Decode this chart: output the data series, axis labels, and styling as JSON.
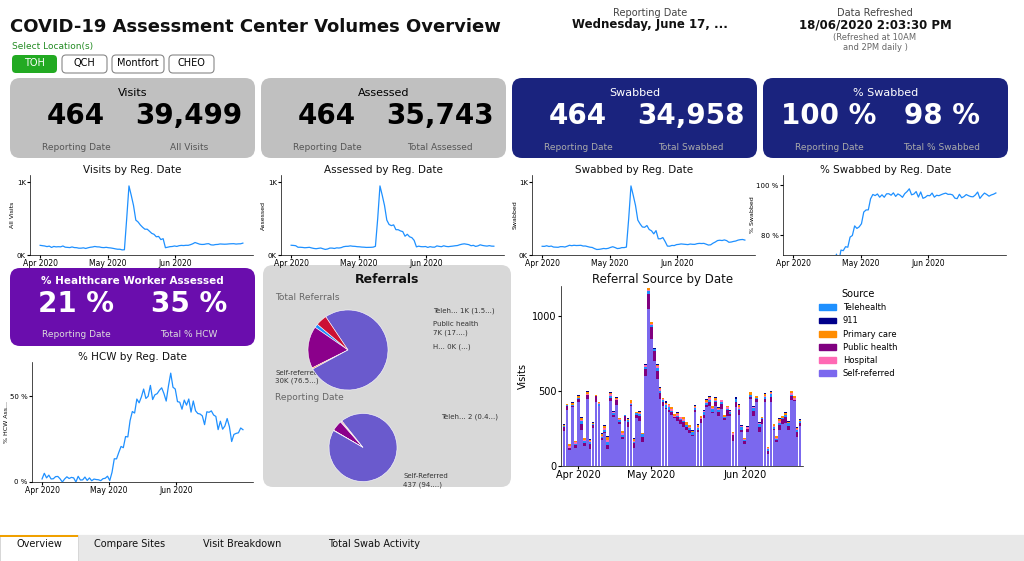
{
  "title": "COVID-19 Assessment Center Volumes Overview",
  "reporting_date_label": "Reporting Date",
  "reporting_date_value": "Wednesday, June 17, ...",
  "data_refreshed_label": "Data Refreshed",
  "data_refreshed_value": "18/06/2020 2:03:30 PM",
  "refreshed_note": "(Refreshed at 10AM\nand 2PM daily )",
  "select_location_label": "Select Location(s)",
  "locations": [
    "TOH",
    "QCH",
    "Montfort",
    "CHEO"
  ],
  "kpi_cards": [
    {
      "title": "Visits",
      "bg_color": "#c0c0c0",
      "text_color": "#000000",
      "values": [
        "464",
        "39,499"
      ],
      "labels": [
        "Reporting Date",
        "All Visits"
      ]
    },
    {
      "title": "Assessed",
      "bg_color": "#c0c0c0",
      "text_color": "#000000",
      "values": [
        "464",
        "35,743"
      ],
      "labels": [
        "Reporting Date",
        "Total Assessed"
      ]
    },
    {
      "title": "Swabbed",
      "bg_color": "#1a237e",
      "text_color": "#ffffff",
      "values": [
        "464",
        "34,958"
      ],
      "labels": [
        "Reporting Date",
        "Total Swabbed"
      ]
    },
    {
      "title": "% Swabbed",
      "bg_color": "#1a237e",
      "text_color": "#ffffff",
      "values": [
        "100 %",
        "98 %"
      ],
      "labels": [
        "Reporting Date",
        "Total % Swabbed"
      ]
    }
  ],
  "sparkline_titles": [
    "Visits by Reg. Date",
    "Assessed by Reg. Date",
    "Swabbed by Reg. Date",
    "% Swabbed by Reg. Date"
  ],
  "sparkline_ylabels": [
    "All Visits",
    "Assessed",
    "Swabbed",
    "% Swabbed"
  ],
  "sparkline_color": "#1e90ff",
  "hcw_card": {
    "title": "% Healthcare Worker Assessed",
    "bg_color": "#6a0dad",
    "text_color": "#ffffff",
    "values": [
      "21 %",
      "35 %"
    ],
    "labels": [
      "Reporting Date",
      "Total % HCW"
    ]
  },
  "hcw_sparkline_title": "% HCW by Reg. Date",
  "hcw_sparkline_ylabel": "% HCW Ass...",
  "referrals_title": "Referrals",
  "pie_total_label": "Total Referrals",
  "pie_total_data": [
    1.5,
    17,
    0.5,
    76.5,
    4.5
  ],
  "pie_total_colors": [
    "#1e90ff",
    "#8b008b",
    "#ff6600",
    "#6a5acd",
    "#cc1133"
  ],
  "pie_reporting_data": [
    0.4,
    5,
    0.2,
    94,
    0.4
  ],
  "pie_reporting_colors": [
    "#1e90ff",
    "#8b008b",
    "#ff6600",
    "#6a5acd",
    "#cc1133"
  ],
  "bar_chart_title": "Referral Source by Date",
  "bar_dates": [
    "Apr 2020",
    "May 2020",
    "Jun 2020"
  ],
  "bar_legend_sources": [
    "Telehealth",
    "911",
    "Primary care",
    "Public health",
    "Hospital",
    "Self-referred"
  ],
  "bar_legend_colors": [
    "#1e90ff",
    "#00008b",
    "#ff8c00",
    "#800080",
    "#ff69b4",
    "#7b68ee"
  ],
  "bar_ylabel": "Visits",
  "tab_labels": [
    "Overview",
    "Compare Sites",
    "Visit Breakdown",
    "Total Swab Activity"
  ],
  "bg_color": "#ffffff"
}
